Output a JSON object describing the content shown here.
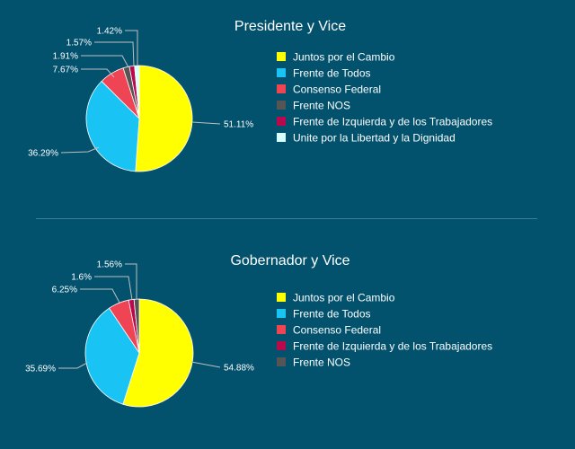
{
  "chart_data": [
    {
      "type": "pie",
      "title": "Presidente y Vice",
      "slices": [
        {
          "label": "Juntos por el Cambio",
          "value": 51.11,
          "display": "51.11%",
          "color": "#ffff00"
        },
        {
          "label": "Frente de Todos",
          "value": 36.29,
          "display": "36.29%",
          "color": "#19c4f5"
        },
        {
          "label": "Consenso Federal",
          "value": 7.67,
          "display": "7.67%",
          "color": "#ee4454"
        },
        {
          "label": "Frente NOS",
          "value": 1.91,
          "display": "1.91%",
          "color": "#555555"
        },
        {
          "label": "Frente de Izquierda y de los Trabajadores",
          "value": 1.57,
          "display": "1.57%",
          "color": "#b7094c"
        },
        {
          "label": "Unite por la Libertad y la Dignidad",
          "value": 1.42,
          "display": "1.42%",
          "color": "#d6ffff"
        }
      ],
      "legend_position": "right"
    },
    {
      "type": "pie",
      "title": "Gobernador y Vice",
      "slices": [
        {
          "label": "Juntos por el Cambio",
          "value": 54.88,
          "display": "54.88%",
          "color": "#ffff00"
        },
        {
          "label": "Frente de Todos",
          "value": 35.69,
          "display": "35.69%",
          "color": "#19c4f5"
        },
        {
          "label": "Consenso Federal",
          "value": 6.25,
          "display": "6.25%",
          "color": "#ee4454"
        },
        {
          "label": "Frente de Izquierda y de los Trabajadores",
          "value": 1.6,
          "display": "1.6%",
          "color": "#b7094c"
        },
        {
          "label": "Frente NOS",
          "value": 1.56,
          "display": "1.56%",
          "color": "#555555"
        }
      ],
      "legend_position": "right"
    }
  ]
}
